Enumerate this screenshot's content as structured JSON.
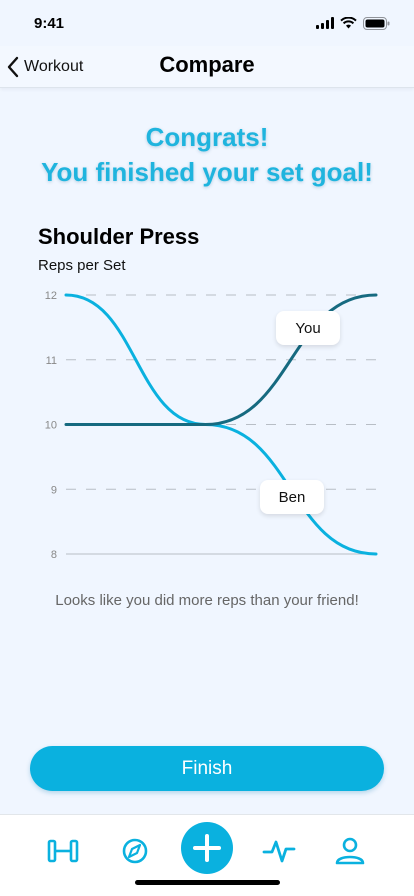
{
  "status_bar": {
    "time": "9:41",
    "icons": [
      "signal-icon",
      "wifi-icon",
      "battery-icon"
    ]
  },
  "nav": {
    "back_label": "Workout",
    "title": "Compare"
  },
  "congrats": {
    "line1": "Congrats!",
    "line2": "You finished your set goal!"
  },
  "exercise": {
    "title": "Shoulder Press",
    "metric": "Reps per Set"
  },
  "chart_data": {
    "type": "line",
    "ylim": [
      8,
      12
    ],
    "y_ticks": [
      "12",
      "11",
      "10",
      "9",
      "8"
    ],
    "grid": true,
    "series": [
      {
        "name": "You",
        "color": "#166a80",
        "points": [
          [
            0,
            10
          ],
          [
            0.45,
            10
          ],
          [
            1,
            12
          ]
        ]
      },
      {
        "name": "Ben",
        "color": "#0ab1df",
        "points": [
          [
            0,
            12
          ],
          [
            0.45,
            10
          ],
          [
            1,
            8
          ]
        ]
      }
    ]
  },
  "summary": "Looks like you did more reps than your friend!",
  "finish_label": "Finish",
  "tabs": [
    "workouts-tab",
    "explore-tab",
    "add-tab",
    "activity-tab",
    "profile-tab"
  ],
  "colors": {
    "accent": "#0ab1df",
    "dark_line": "#166a80",
    "background": "#f0f6ff"
  }
}
